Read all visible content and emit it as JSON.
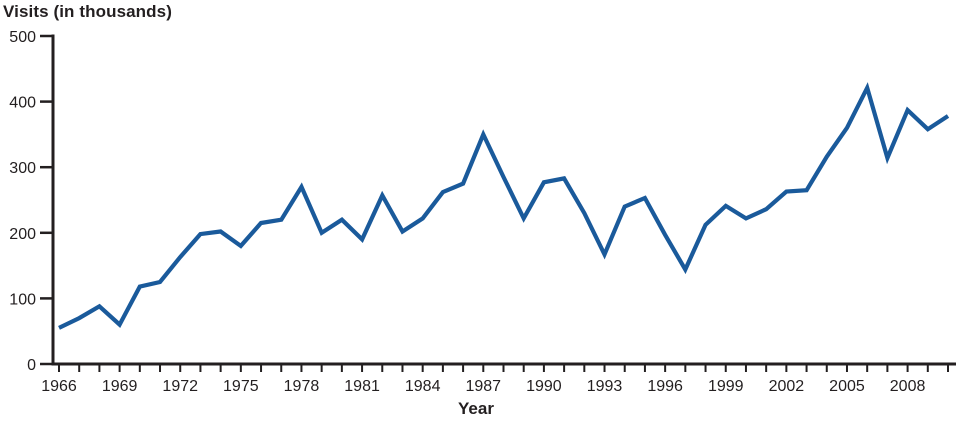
{
  "page": {
    "background_color": "#ffffff"
  },
  "chart_data": {
    "type": "line",
    "title": "Visits (in thousands)",
    "xlabel": "Year",
    "ylabel": "Visits (in thousands)",
    "grid": false,
    "legend": "none",
    "line_color": "#1a5a9b",
    "axis_color": "#231f20",
    "text_color": "#231f20",
    "ylim": [
      0,
      500
    ],
    "y_ticks": [
      0,
      100,
      200,
      300,
      400,
      500
    ],
    "x_tick_interval_years": 1,
    "x_label_interval_years": 3,
    "x_labeled_years": [
      1966,
      1969,
      1972,
      1975,
      1978,
      1981,
      1984,
      1987,
      1990,
      1993,
      1996,
      1999,
      2002,
      2005,
      2008
    ],
    "years": [
      1966,
      1967,
      1968,
      1969,
      1970,
      1971,
      1972,
      1973,
      1974,
      1975,
      1976,
      1977,
      1978,
      1979,
      1980,
      1981,
      1982,
      1983,
      1984,
      1985,
      1986,
      1987,
      1988,
      1989,
      1990,
      1991,
      1992,
      1993,
      1994,
      1995,
      1996,
      1997,
      1998,
      1999,
      2000,
      2001,
      2002,
      2003,
      2004,
      2005,
      2006,
      2007,
      2008,
      2009,
      2010
    ],
    "values": [
      55,
      70,
      88,
      60,
      118,
      125,
      163,
      198,
      202,
      180,
      215,
      220,
      270,
      200,
      220,
      190,
      257,
      202,
      222,
      262,
      275,
      350,
      285,
      222,
      277,
      283,
      230,
      167,
      240,
      253,
      197,
      144,
      212,
      241,
      222,
      236,
      263,
      265,
      316,
      360,
      421,
      314,
      387,
      358,
      378
    ]
  }
}
